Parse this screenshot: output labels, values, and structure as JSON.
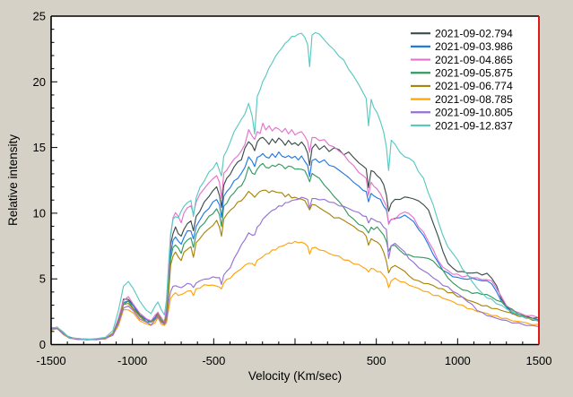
{
  "window": {
    "background": "#d5d1c6"
  },
  "chart_data": {
    "type": "line",
    "title": "",
    "xlabel": "Velocity (Km/sec)",
    "ylabel": "Relative intensity",
    "xlim": [
      -1500,
      1500
    ],
    "ylim": [
      0,
      25
    ],
    "grid": false,
    "legend_position": "top-right",
    "frame_colors": {
      "left": "#000000",
      "top": "#000000",
      "bottom": "#000000",
      "right": "#e00000"
    },
    "x_major_ticks": [
      -1500,
      -1000,
      -500,
      0,
      500,
      1000,
      1500
    ],
    "x_tick_labels": [
      "-1500",
      "-1000",
      "-500",
      "",
      "500",
      "1000",
      "1500"
    ],
    "x_minor_step": 100,
    "y_major_ticks": [
      0,
      5,
      10,
      15,
      20,
      25
    ],
    "y_tick_labels": [
      "0",
      "5",
      "10",
      "15",
      "20",
      "25"
    ],
    "y_minor_step": 1,
    "x": [
      -1500,
      -1462,
      -1425,
      -1388,
      -1340,
      -1280,
      -1220,
      -1165,
      -1120,
      -1085,
      -1055,
      -1025,
      -995,
      -955,
      -915,
      -885,
      -860,
      -843,
      -822,
      -803,
      -790,
      -778,
      -765,
      -750,
      -735,
      -718,
      -700,
      -683,
      -662,
      -640,
      -625,
      -608,
      -585,
      -558,
      -530,
      -505,
      -482,
      -465,
      -452,
      -438,
      -420,
      -398,
      -375,
      -352,
      -330,
      -308,
      -285,
      -263,
      -248,
      -232,
      -215,
      -198,
      -180,
      -160,
      -140,
      -120,
      -100,
      -80,
      -60,
      -40,
      -20,
      0,
      20,
      40,
      60,
      78,
      90,
      105,
      125,
      150,
      180,
      210,
      240,
      270,
      300,
      330,
      360,
      392,
      418,
      438,
      452,
      468,
      485,
      505,
      525,
      545,
      562,
      576,
      592,
      615,
      645,
      675,
      700,
      730,
      760,
      790,
      820,
      850,
      880,
      910,
      940,
      970,
      1000,
      1030,
      1060,
      1090,
      1120,
      1150,
      1180,
      1210,
      1240,
      1270,
      1300,
      1335,
      1375,
      1420,
      1460,
      1500
    ],
    "series": [
      {
        "name": "2021-09-02.794",
        "color": "#3e4c4c",
        "values": [
          1.2,
          1.3,
          0.85,
          0.55,
          0.45,
          0.4,
          0.4,
          0.48,
          0.85,
          1.9,
          3.4,
          3.5,
          3.0,
          2.3,
          1.9,
          1.8,
          2.1,
          2.4,
          1.9,
          1.7,
          2.6,
          5.0,
          7.6,
          8.5,
          8.9,
          8.5,
          8.2,
          8.8,
          9.2,
          9.4,
          8.7,
          9.7,
          10.2,
          10.8,
          11.3,
          11.7,
          12.0,
          11.4,
          10.4,
          12.2,
          12.6,
          13.0,
          13.5,
          13.9,
          14.1,
          14.9,
          15.5,
          15.1,
          14.8,
          15.4,
          15.7,
          15.8,
          15.5,
          15.3,
          15.6,
          15.4,
          15.7,
          15.5,
          15.2,
          15.5,
          15.3,
          15.3,
          15.2,
          15.4,
          15.1,
          14.6,
          13.6,
          15.0,
          15.2,
          14.9,
          15.1,
          14.7,
          15.0,
          14.8,
          14.5,
          14.6,
          14.3,
          13.8,
          13.6,
          13.4,
          11.9,
          13.3,
          13.1,
          12.9,
          12.6,
          12.2,
          11.4,
          10.1,
          10.8,
          11.0,
          11.1,
          11.2,
          11.2,
          11.1,
          10.9,
          10.7,
          10.2,
          9.3,
          8.2,
          7.1,
          6.2,
          5.8,
          5.6,
          5.5,
          5.5,
          5.4,
          5.5,
          5.3,
          5.4,
          5.1,
          4.4,
          3.5,
          2.9,
          2.5,
          2.3,
          2.15,
          2.05,
          2.0
        ]
      },
      {
        "name": "2021-09-03.986",
        "color": "#2279e2",
        "values": [
          1.2,
          1.3,
          0.85,
          0.55,
          0.45,
          0.4,
          0.4,
          0.48,
          0.85,
          1.85,
          3.2,
          3.35,
          2.9,
          2.25,
          1.85,
          1.75,
          2.05,
          2.35,
          1.9,
          1.65,
          2.4,
          4.6,
          7.0,
          7.9,
          8.2,
          7.9,
          7.6,
          8.2,
          8.6,
          8.7,
          8.0,
          9.0,
          9.5,
          10.0,
          10.4,
          10.8,
          11.1,
          10.6,
          9.7,
          11.3,
          11.6,
          12.0,
          12.4,
          12.7,
          13.0,
          13.5,
          14.3,
          13.9,
          13.6,
          14.2,
          14.4,
          14.5,
          14.3,
          14.2,
          14.5,
          14.3,
          14.6,
          14.4,
          14.2,
          14.4,
          14.2,
          14.3,
          14.1,
          14.3,
          14.0,
          13.6,
          12.8,
          14.0,
          14.1,
          13.9,
          14.0,
          13.7,
          13.5,
          13.3,
          13.0,
          12.7,
          12.4,
          12.0,
          11.8,
          11.6,
          10.9,
          11.5,
          11.3,
          11.2,
          11.0,
          10.6,
          10.2,
          9.3,
          9.5,
          9.6,
          9.7,
          9.8,
          9.7,
          9.3,
          8.8,
          8.3,
          7.6,
          6.9,
          6.2,
          5.7,
          5.4,
          5.2,
          5.1,
          5.0,
          5.0,
          5.0,
          5.0,
          4.8,
          4.9,
          4.6,
          4.0,
          3.3,
          2.8,
          2.4,
          2.2,
          2.05,
          1.95,
          1.9
        ]
      },
      {
        "name": "2021-09-04.865",
        "color": "#e473cd",
        "values": [
          1.25,
          1.35,
          0.9,
          0.55,
          0.45,
          0.4,
          0.42,
          0.5,
          0.9,
          2.0,
          3.4,
          3.6,
          3.1,
          2.4,
          1.95,
          1.85,
          2.2,
          2.5,
          2.0,
          1.75,
          2.8,
          5.4,
          8.3,
          9.6,
          10.1,
          9.7,
          9.3,
          10.0,
          10.4,
          10.6,
          9.9,
          10.9,
          11.4,
          11.9,
          12.3,
          12.6,
          12.9,
          12.3,
          11.2,
          13.0,
          13.3,
          13.7,
          14.1,
          14.4,
          14.7,
          15.3,
          16.3,
          15.9,
          15.6,
          16.2,
          16.1,
          16.8,
          16.4,
          16.6,
          16.3,
          16.5,
          16.4,
          16.2,
          16.4,
          16.1,
          16.3,
          16.0,
          16.1,
          16.2,
          15.9,
          15.4,
          14.7,
          15.7,
          15.8,
          15.5,
          15.6,
          15.2,
          15.0,
          14.8,
          14.4,
          14.0,
          13.6,
          13.1,
          12.9,
          12.6,
          11.4,
          12.3,
          12.1,
          11.8,
          11.5,
          11.0,
          10.5,
          9.2,
          9.5,
          9.6,
          9.9,
          10.1,
          10.0,
          9.6,
          9.0,
          8.5,
          7.9,
          7.2,
          6.4,
          5.9,
          5.6,
          5.4,
          5.3,
          5.2,
          5.2,
          5.1,
          5.1,
          4.9,
          5.0,
          4.8,
          4.3,
          3.6,
          3.0,
          2.6,
          2.4,
          2.25,
          2.15,
          2.1
        ]
      },
      {
        "name": "2021-09-05.875",
        "color": "#339a60",
        "values": [
          1.15,
          1.25,
          0.8,
          0.5,
          0.42,
          0.38,
          0.4,
          0.46,
          0.8,
          1.8,
          3.1,
          3.25,
          2.8,
          2.2,
          1.8,
          1.7,
          2.0,
          2.3,
          1.85,
          1.6,
          2.3,
          4.2,
          6.5,
          7.4,
          7.6,
          7.3,
          7.0,
          7.6,
          8.0,
          8.1,
          7.4,
          8.4,
          8.9,
          9.3,
          9.7,
          10.0,
          10.3,
          9.9,
          9.0,
          10.5,
          10.8,
          11.2,
          11.6,
          11.9,
          12.1,
          12.6,
          13.5,
          13.1,
          12.9,
          13.4,
          13.6,
          13.8,
          13.5,
          13.4,
          13.7,
          13.5,
          13.8,
          13.6,
          13.4,
          13.6,
          13.5,
          13.4,
          13.3,
          13.4,
          13.2,
          12.8,
          12.4,
          13.0,
          12.9,
          12.6,
          12.2,
          11.7,
          11.3,
          10.9,
          10.4,
          9.9,
          9.5,
          9.2,
          9.0,
          8.8,
          8.5,
          8.9,
          8.8,
          8.9,
          8.7,
          8.3,
          7.9,
          7.1,
          7.5,
          7.6,
          7.1,
          6.9,
          6.8,
          6.7,
          6.65,
          6.6,
          6.6,
          6.3,
          6.0,
          5.6,
          5.1,
          4.7,
          4.4,
          4.2,
          4.05,
          3.95,
          3.9,
          3.85,
          3.8,
          3.6,
          3.4,
          3.2,
          2.95,
          2.65,
          2.35,
          2.1,
          1.95,
          1.85
        ]
      },
      {
        "name": "2021-09-06.774",
        "color": "#a98508",
        "values": [
          1.15,
          1.25,
          0.8,
          0.5,
          0.42,
          0.38,
          0.4,
          0.45,
          0.78,
          1.7,
          3.0,
          3.15,
          2.7,
          2.1,
          1.75,
          1.65,
          1.95,
          2.25,
          1.8,
          1.55,
          2.1,
          3.8,
          6.0,
          6.8,
          7.0,
          6.7,
          6.4,
          7.0,
          7.3,
          7.4,
          6.7,
          7.7,
          8.1,
          8.5,
          8.8,
          9.1,
          9.4,
          9.0,
          8.2,
          9.6,
          9.9,
          10.2,
          10.5,
          10.8,
          11.0,
          11.2,
          11.7,
          11.4,
          11.2,
          11.5,
          11.6,
          11.8,
          11.7,
          11.6,
          11.7,
          11.6,
          11.6,
          11.5,
          11.3,
          11.4,
          11.2,
          11.2,
          11.1,
          11.1,
          10.9,
          10.6,
          10.2,
          10.7,
          10.6,
          10.4,
          10.2,
          9.9,
          9.7,
          9.6,
          9.5,
          9.2,
          9.0,
          8.7,
          8.5,
          8.3,
          7.5,
          8.1,
          7.9,
          7.8,
          7.6,
          7.0,
          6.4,
          5.4,
          5.9,
          6.0,
          5.8,
          5.6,
          5.2,
          5.0,
          4.8,
          4.7,
          4.6,
          4.5,
          4.3,
          4.2,
          4.0,
          3.9,
          3.7,
          3.6,
          3.4,
          3.3,
          3.1,
          3.0,
          2.9,
          2.8,
          2.7,
          2.6,
          2.5,
          2.35,
          2.2,
          2.05,
          1.9,
          1.8
        ]
      },
      {
        "name": "2021-09-08.785",
        "color": "#ffa408",
        "values": [
          1.1,
          1.2,
          0.78,
          0.48,
          0.4,
          0.36,
          0.38,
          0.44,
          0.72,
          1.5,
          2.6,
          2.7,
          2.35,
          1.85,
          1.55,
          1.45,
          1.7,
          2.0,
          1.6,
          1.4,
          1.7,
          2.6,
          3.5,
          3.8,
          3.9,
          3.8,
          3.75,
          3.95,
          4.05,
          4.1,
          3.75,
          4.2,
          4.35,
          4.5,
          4.55,
          4.5,
          4.45,
          4.4,
          4.2,
          4.75,
          4.9,
          5.1,
          5.35,
          5.6,
          5.8,
          6.0,
          6.25,
          6.1,
          6.05,
          6.4,
          6.55,
          6.7,
          6.85,
          7.0,
          7.15,
          7.25,
          7.4,
          7.5,
          7.6,
          7.7,
          7.75,
          7.8,
          7.8,
          7.75,
          7.7,
          7.5,
          6.85,
          7.4,
          7.35,
          7.25,
          7.1,
          6.95,
          6.8,
          6.7,
          6.5,
          6.35,
          6.2,
          6.05,
          5.9,
          5.75,
          5.5,
          5.85,
          5.7,
          5.6,
          5.5,
          5.3,
          5.0,
          4.3,
          4.9,
          5.0,
          4.85,
          4.7,
          4.55,
          4.4,
          4.25,
          4.1,
          3.95,
          3.8,
          3.7,
          3.55,
          3.4,
          3.25,
          3.1,
          2.95,
          2.8,
          2.65,
          2.55,
          2.45,
          2.35,
          2.25,
          2.15,
          2.05,
          1.95,
          1.85,
          1.75,
          1.65,
          1.55,
          1.5
        ]
      },
      {
        "name": "2021-09-10.805",
        "color": "#9671d5",
        "values": [
          1.15,
          1.25,
          0.8,
          0.5,
          0.42,
          0.38,
          0.4,
          0.45,
          0.75,
          1.6,
          2.8,
          2.95,
          2.55,
          2.0,
          1.65,
          1.55,
          1.85,
          2.15,
          1.7,
          1.5,
          1.9,
          3.1,
          4.1,
          4.4,
          4.5,
          4.4,
          4.3,
          4.5,
          4.6,
          4.65,
          4.3,
          4.7,
          4.85,
          4.95,
          5.05,
          5.1,
          5.15,
          5.05,
          4.6,
          5.3,
          5.55,
          5.9,
          6.5,
          7.1,
          7.55,
          8.0,
          8.5,
          8.3,
          8.4,
          8.9,
          9.2,
          9.5,
          9.8,
          10.0,
          10.2,
          10.35,
          10.5,
          10.6,
          10.75,
          10.85,
          10.95,
          11.0,
          11.1,
          11.15,
          11.2,
          11.0,
          10.4,
          11.1,
          11.1,
          11.05,
          11.0,
          10.9,
          10.75,
          10.6,
          10.5,
          10.35,
          10.2,
          10.0,
          9.85,
          9.7,
          9.3,
          9.6,
          9.5,
          9.4,
          9.25,
          9.0,
          8.7,
          6.6,
          7.5,
          7.7,
          7.4,
          7.0,
          6.6,
          6.2,
          5.9,
          5.6,
          5.4,
          5.1,
          4.8,
          4.55,
          4.35,
          4.1,
          3.85,
          3.6,
          3.3,
          3.0,
          2.65,
          2.4,
          2.25,
          2.1,
          2.0,
          1.9,
          1.8,
          1.7,
          1.6,
          1.5,
          1.42,
          1.38
        ]
      },
      {
        "name": "2021-09-12.837",
        "color": "#5bc8c2",
        "values": [
          1.25,
          1.35,
          0.9,
          0.55,
          0.45,
          0.42,
          0.45,
          0.55,
          1.1,
          2.6,
          4.5,
          4.75,
          4.3,
          3.3,
          2.6,
          2.4,
          2.9,
          3.3,
          2.6,
          2.3,
          3.4,
          6.0,
          8.5,
          9.5,
          9.8,
          9.6,
          10.2,
          10.5,
          10.8,
          11.0,
          9.7,
          11.2,
          11.9,
          12.5,
          13.1,
          13.4,
          13.9,
          13.2,
          12.9,
          14.3,
          14.8,
          15.4,
          16.2,
          16.7,
          17.1,
          17.6,
          18.3,
          17.4,
          16.0,
          18.9,
          19.4,
          20.0,
          20.5,
          21.0,
          21.5,
          21.9,
          22.3,
          22.6,
          22.9,
          23.2,
          23.4,
          23.5,
          23.6,
          23.7,
          23.4,
          22.8,
          21.2,
          23.5,
          23.8,
          23.6,
          23.2,
          22.8,
          22.4,
          22.0,
          21.6,
          21.0,
          20.4,
          19.8,
          19.2,
          18.7,
          16.7,
          18.6,
          18.1,
          17.6,
          17.0,
          16.2,
          15.0,
          13.3,
          15.5,
          15.3,
          14.6,
          14.3,
          14.2,
          13.9,
          13.2,
          12.6,
          11.6,
          10.6,
          9.4,
          8.3,
          7.4,
          7.0,
          6.4,
          5.8,
          5.3,
          4.8,
          4.3,
          3.9,
          3.6,
          3.4,
          3.15,
          2.95,
          2.75,
          2.5,
          2.25,
          2.05,
          1.9,
          1.8
        ]
      }
    ]
  }
}
